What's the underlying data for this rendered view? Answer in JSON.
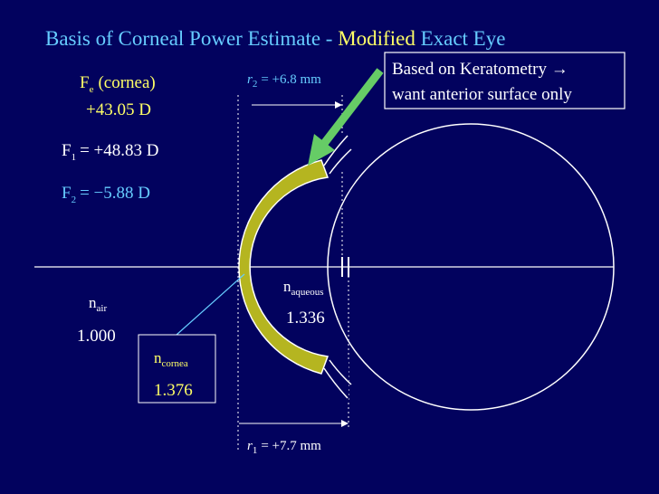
{
  "title": {
    "main": "Basis of Corneal Power Estimate -",
    "modified": "Modified",
    "exact": "Exact Eye"
  },
  "powers": {
    "fe": {
      "symbol": "F",
      "sub": "e",
      "text": "(cornea)",
      "value": "+43.05 D"
    },
    "f1": {
      "symbol": "F",
      "sub": "1",
      "text": "= +48.83 D"
    },
    "f2": {
      "symbol": "F",
      "sub": "2",
      "text": "= −5.88 D"
    }
  },
  "radii": {
    "r2": {
      "symbol": "r",
      "sub": "2",
      "text": "= +6.8 mm"
    },
    "r1": {
      "symbol": "r",
      "sub": "1",
      "text": "= +7.7 mm"
    }
  },
  "callout": {
    "lines": [
      "Based on Keratometry →",
      "want anterior surface only"
    ]
  },
  "media": {
    "aqueous": {
      "symbol": "n",
      "sub": "aqueous",
      "value": "1.336"
    },
    "air": {
      "symbol": "n",
      "sub": "air",
      "value": "1.000"
    },
    "cornea": {
      "symbol": "n",
      "sub": "cornea",
      "value": "1.376"
    }
  }
}
